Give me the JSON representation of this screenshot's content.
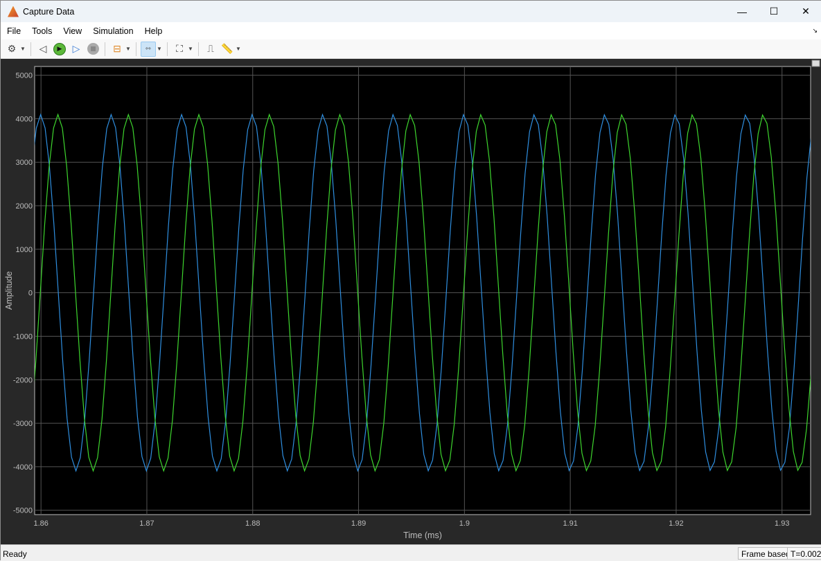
{
  "window": {
    "title": "Capture Data",
    "minimize": "—",
    "maximize": "☐",
    "close": "✕"
  },
  "menu": [
    "File",
    "Tools",
    "View",
    "Simulation",
    "Help"
  ],
  "toolbar": {
    "icons": [
      "gear-icon",
      "step-back-icon",
      "run-icon",
      "step-forward-icon",
      "stop-icon",
      "signal-selector-icon",
      "zoom-x-icon",
      "fit-axes-icon",
      "triggers-icon",
      "measurements-icon"
    ]
  },
  "status": {
    "text": "Ready",
    "mode": "Frame based",
    "time": "T=0.002"
  },
  "chart_data": {
    "type": "line",
    "xlabel": "Time (ms)",
    "ylabel": "Amplitude",
    "xlim": [
      1.8594,
      1.9327
    ],
    "ylim": [
      -5100,
      5200
    ],
    "xticks": [
      "1.86",
      "1.87",
      "1.88",
      "1.89",
      "1.9",
      "1.91",
      "1.92",
      "1.93"
    ],
    "yticks": [
      "5000",
      "4000",
      "3000",
      "2000",
      "1000",
      "0",
      "-1000",
      "-2000",
      "-3000",
      "-4000",
      "-5000"
    ],
    "grid": true,
    "background": "#000000",
    "series": [
      {
        "color": "#2f8fe0",
        "amplitude": 4096,
        "period_ms": 0.006664,
        "peak_time_ms": 1.85997,
        "sample_interval_ms": 0.000416
      },
      {
        "color": "#3ed62e",
        "amplitude": 4096,
        "period_ms": 0.006664,
        "peak_time_ms": 1.8616,
        "sample_interval_ms": 0.000416
      }
    ]
  }
}
